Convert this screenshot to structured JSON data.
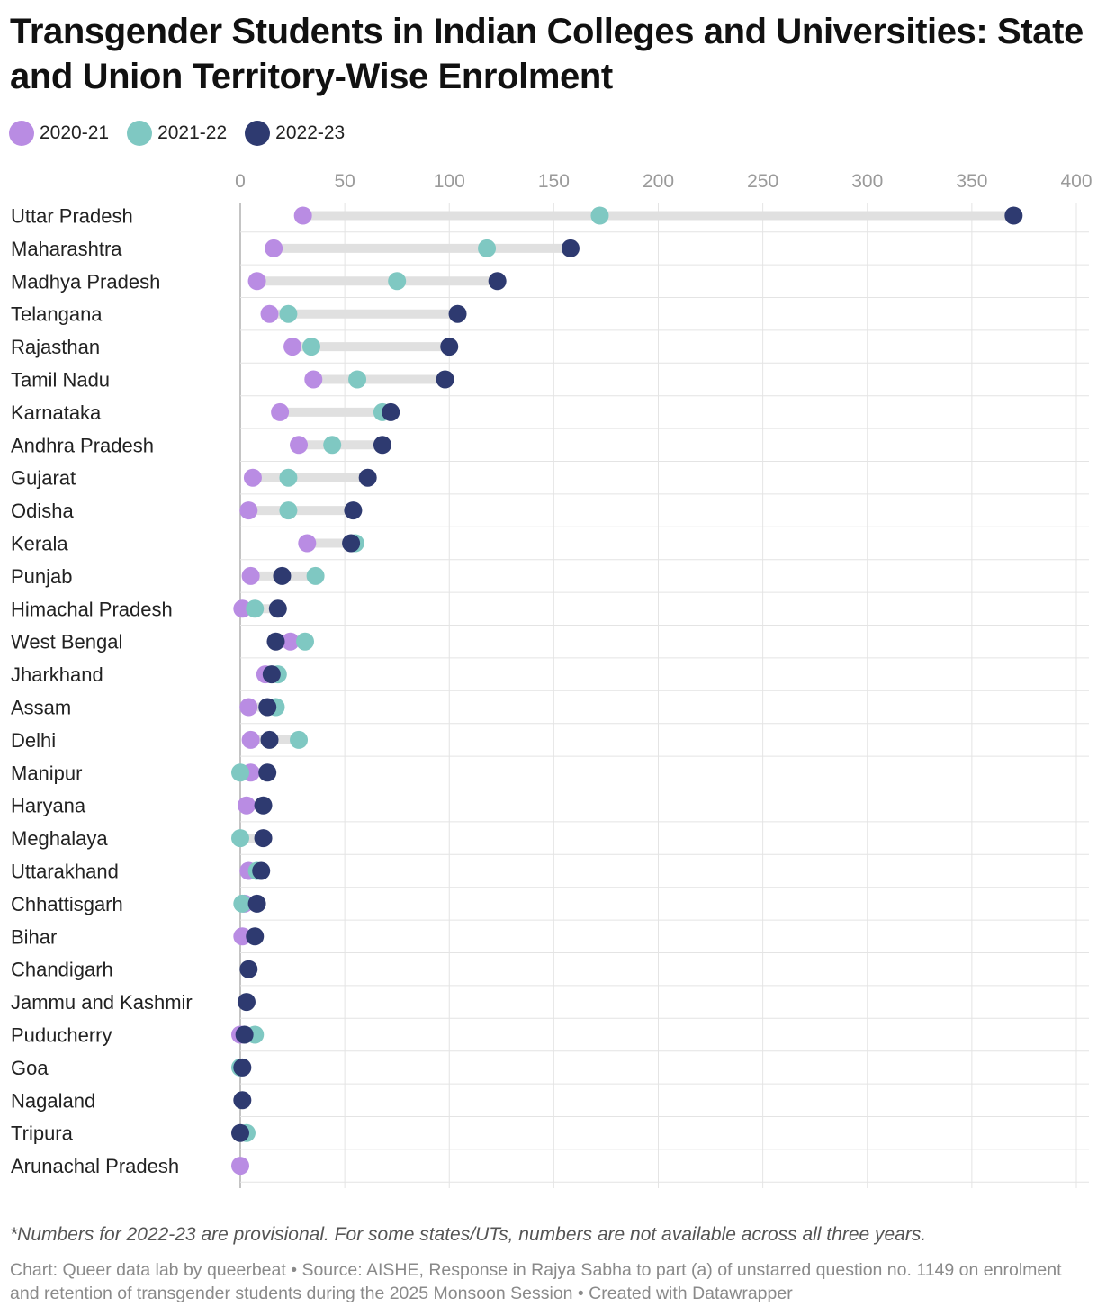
{
  "title": "Transgender Students in Indian Colleges and Universities: State and Union Territory-Wise Enrolment",
  "footnote": "*Numbers for 2022-23 are provisional. For some states/UTs, numbers are not available across all three years.",
  "source_line": "Chart: Queer data lab by queerbeat • Source: AISHE, Response in Rajya Sabha to part (a) of unstarred question no. 1149 on enrolment and retention of transgender students during the 2025 Monsoon Session • Created with Datawrapper",
  "colors": {
    "y2020_21": "#b98ce3",
    "y2021_22": "#7fc8c2",
    "y2022_23": "#2e3a70",
    "range_bar": "#e0e0e0",
    "grid": "#e4e4e4",
    "zero_line": "#b0b0b0",
    "tick_text": "#9a9a9a"
  },
  "chart_data": {
    "type": "dot-range",
    "orientation": "horizontal",
    "xlim": [
      0,
      400
    ],
    "x_ticks": [
      0,
      50,
      100,
      150,
      200,
      250,
      300,
      350,
      400
    ],
    "grid": true,
    "legend_position": "top-left",
    "series": [
      {
        "name": "2020-21",
        "color": "#b98ce3"
      },
      {
        "name": "2021-22",
        "color": "#7fc8c2"
      },
      {
        "name": "2022-23",
        "color": "#2e3a70"
      }
    ],
    "categories": [
      "Uttar Pradesh",
      "Maharashtra",
      "Madhya Pradesh",
      "Telangana",
      "Rajasthan",
      "Tamil Nadu",
      "Karnataka",
      "Andhra Pradesh",
      "Gujarat",
      "Odisha",
      "Kerala",
      "Punjab",
      "Himachal Pradesh",
      "West Bengal",
      "Jharkhand",
      "Assam",
      "Delhi",
      "Manipur",
      "Haryana",
      "Meghalaya",
      "Uttarakhand",
      "Chhattisgarh",
      "Bihar",
      "Chandigarh",
      "Jammu and Kashmir",
      "Puducherry",
      "Goa",
      "Nagaland",
      "Tripura",
      "Arunachal Pradesh"
    ],
    "values": {
      "2020-21": [
        30,
        16,
        8,
        14,
        25,
        35,
        19,
        28,
        6,
        4,
        32,
        5,
        1,
        24,
        12,
        4,
        5,
        5,
        3,
        null,
        4,
        2,
        1,
        null,
        null,
        0,
        null,
        null,
        null,
        0
      ],
      "2021-22": [
        172,
        118,
        75,
        23,
        34,
        56,
        68,
        44,
        23,
        23,
        55,
        36,
        7,
        31,
        18,
        17,
        28,
        0,
        null,
        0,
        8,
        1,
        null,
        null,
        null,
        7,
        0,
        null,
        3,
        null
      ],
      "2022-23": [
        370,
        158,
        123,
        104,
        100,
        98,
        72,
        68,
        61,
        54,
        53,
        20,
        18,
        17,
        15,
        13,
        14,
        13,
        11,
        11,
        10,
        8,
        7,
        4,
        3,
        2,
        1,
        1,
        0,
        null
      ]
    }
  }
}
